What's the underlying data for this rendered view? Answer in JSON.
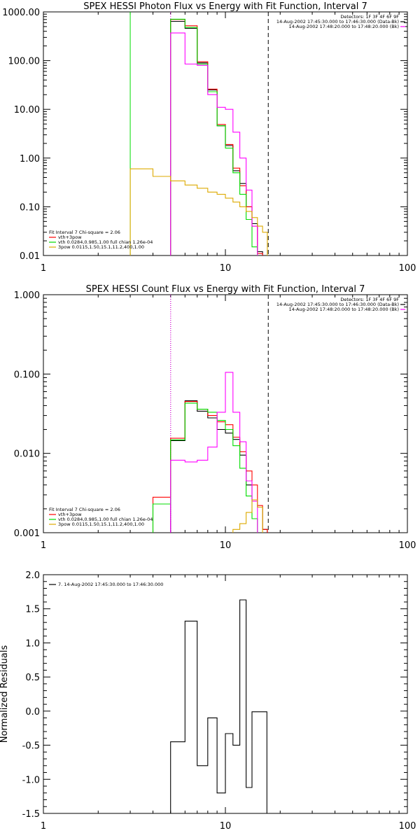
{
  "chart_data": [
    {
      "type": "line",
      "title": "SPEX HESSI Photon Flux vs Energy with Fit Function, Interval 7",
      "xlabel": "",
      "ylabel": "",
      "xscale": "log",
      "yscale": "log",
      "xlim": [
        1,
        100
      ],
      "ylim": [
        0.01,
        1000
      ],
      "xticks": [
        1,
        10,
        100
      ],
      "xtick_labels": [
        "1",
        "10",
        "100"
      ],
      "yticks": [
        0.01,
        0.1,
        1,
        10,
        100,
        1000
      ],
      "ytick_labels": [
        "0.01",
        "0.10",
        "1.00",
        "10.00",
        "100.00",
        "1000.00"
      ],
      "edges": [
        3,
        4,
        5,
        6,
        7,
        8,
        9,
        10,
        11,
        12,
        13,
        14,
        15,
        16,
        17,
        18
      ],
      "series": [
        {
          "name": "",
          "color": "#000000",
          "values": [
            null,
            null,
            640,
            460,
            90,
            25,
            4.6,
            1.8,
            0.55,
            0.3,
            0.1,
            0.045,
            0.012,
            null,
            null
          ]
        },
        {
          "name": "vth+3pow",
          "color": "#ff0000",
          "values": [
            null,
            null,
            700,
            520,
            95,
            26,
            4.9,
            1.9,
            0.62,
            0.27,
            0.1,
            0.04,
            0.011,
            null,
            null
          ]
        },
        {
          "name": "vth 0.0284,0.985,1.00  full chian 1.26e-04",
          "color": "#00dd00",
          "values": [
            null,
            null,
            710,
            480,
            85,
            23,
            4.6,
            1.6,
            0.5,
            0.18,
            0.055,
            0.015,
            null,
            null,
            null
          ]
        },
        {
          "name": "",
          "color": "#ff00ff",
          "values": [
            null,
            null,
            370,
            85,
            80,
            20,
            11,
            10,
            3.4,
            1.0,
            0.22,
            0.04,
            null,
            null,
            null
          ]
        },
        {
          "name": "3pow 0.0115,1.50,15.1,11.2,400,1.00",
          "color": "#ddaa00",
          "values": [
            0.6,
            0.42,
            0.34,
            0.28,
            0.24,
            0.2,
            0.18,
            0.15,
            0.125,
            0.1,
            0.08,
            0.06,
            0.04,
            0.03,
            null
          ]
        }
      ],
      "vlines": [
        {
          "x": 3,
          "color": "#00dd00",
          "style": "solid"
        },
        {
          "x": 5,
          "color": "#ff00ff",
          "style": "dotted"
        },
        {
          "x": 17.2,
          "color": "#000000",
          "style": "dashed"
        }
      ],
      "header_labels": [
        "Detectors: 1F 3F 4F 6F 9F",
        "14-Aug-2002 17:45:30.000 to 17:46:30.000 (Data-Bk)",
        "14-Aug-2002 17:48:20.000 to 17:48:20.000 (Bk)"
      ],
      "header_swatches": [
        "#000000",
        "#ff00ff"
      ],
      "fit_label": "Fit Interval 7   Chi-square = 2.06",
      "legend_placement": "bottom-left"
    },
    {
      "type": "line",
      "title": "SPEX HESSI Count Flux vs Energy with Fit Function, Interval 7",
      "xlabel": "",
      "ylabel": "",
      "xscale": "log",
      "yscale": "log",
      "xlim": [
        1,
        100
      ],
      "ylim": [
        0.001,
        1
      ],
      "xticks": [
        1,
        10,
        100
      ],
      "xtick_labels": [
        "1",
        "10",
        "100"
      ],
      "yticks": [
        0.001,
        0.01,
        0.1,
        1
      ],
      "ytick_labels": [
        "0.001",
        "0.010",
        "0.100",
        "1.000"
      ],
      "edges": [
        4,
        5,
        6,
        7,
        8,
        9,
        10,
        11,
        12,
        13,
        14,
        15,
        16,
        17,
        18
      ],
      "series": [
        {
          "name": "",
          "color": "#000000",
          "values": [
            null,
            0.0145,
            0.046,
            0.034,
            0.028,
            0.02,
            0.018,
            0.015,
            0.0095,
            0.004,
            0.0026,
            0.0021,
            0.0011,
            null
          ]
        },
        {
          "name": "vth+3pow",
          "color": "#ff0000",
          "values": [
            0.0028,
            0.0155,
            0.045,
            0.036,
            0.03,
            0.025,
            0.023,
            0.016,
            0.0105,
            0.006,
            0.004,
            0.0022,
            0.0011,
            null
          ]
        },
        {
          "name": "vth 0.0284,0.985,1.00  full chian 1.26e-04",
          "color": "#00dd00",
          "values": [
            0.0023,
            0.0148,
            0.043,
            0.036,
            0.033,
            0.026,
            0.02,
            0.0125,
            0.0065,
            0.0029,
            0.0015,
            null,
            null,
            null
          ]
        },
        {
          "name": "",
          "color": "#ff00ff",
          "values": [
            null,
            0.0082,
            0.0078,
            0.0082,
            0.012,
            0.033,
            0.105,
            0.033,
            0.014,
            0.0045,
            0.0025,
            null,
            null,
            null
          ]
        },
        {
          "name": "3pow 0.0115,1.50,15.1,11.2,400,1.00",
          "color": "#ddaa00",
          "values": [
            null,
            null,
            null,
            null,
            null,
            null,
            null,
            0.0011,
            0.0013,
            0.0018,
            0.0026,
            0.0021,
            null,
            null
          ]
        }
      ],
      "vlines": [
        {
          "x": 5,
          "color": "#000000",
          "style": "dotted"
        },
        {
          "x": 5,
          "color": "#ff00ff",
          "style": "dotted"
        },
        {
          "x": 17.2,
          "color": "#000000",
          "style": "dashed"
        }
      ],
      "header_labels": [
        "Detectors: 1F 3F 4F 6F 9F",
        "14-Aug-2002 17:45:30.000 to 17:46:30.000 (Data-Bk)",
        "14-Aug-2002 17:48:20.000 to 17:48:20.000 (Bk)"
      ],
      "header_swatches": [
        "#000000",
        "#ff00ff"
      ],
      "fit_label": "Fit Interval 7   Chi-square = 2.06",
      "legend_placement": "bottom-left"
    },
    {
      "type": "line",
      "title": "",
      "xlabel": "",
      "ylabel": "Normalized Residuals",
      "xscale": "log",
      "yscale": "linear",
      "xlim": [
        1,
        100
      ],
      "ylim": [
        -1.5,
        2.0
      ],
      "xticks": [
        1,
        10,
        100
      ],
      "xtick_labels": [
        "1",
        "10",
        "100"
      ],
      "yticks": [
        -1.5,
        -1.0,
        -0.5,
        0.0,
        0.5,
        1.0,
        1.5,
        2.0
      ],
      "ytick_labels": [
        "-1.5",
        "-1.0",
        "-0.5",
        "0.0",
        "0.5",
        "1.0",
        "1.5",
        "2.0"
      ],
      "edges": [
        5,
        6,
        7,
        8,
        9,
        10,
        11,
        12,
        13,
        14,
        15,
        16.9
      ],
      "series": [
        {
          "name": "7. 14-Aug-2002 17:45:30.000 to 17:46:30.000",
          "color": "#000000",
          "values": [
            -0.45,
            1.32,
            -0.8,
            -0.1,
            -1.2,
            -0.33,
            -0.5,
            1.63,
            -1.12,
            -0.01,
            -0.01
          ]
        }
      ],
      "vlines": [],
      "header_labels": [],
      "header_swatches": [],
      "fit_label": "",
      "legend_placement": "top-left"
    }
  ]
}
